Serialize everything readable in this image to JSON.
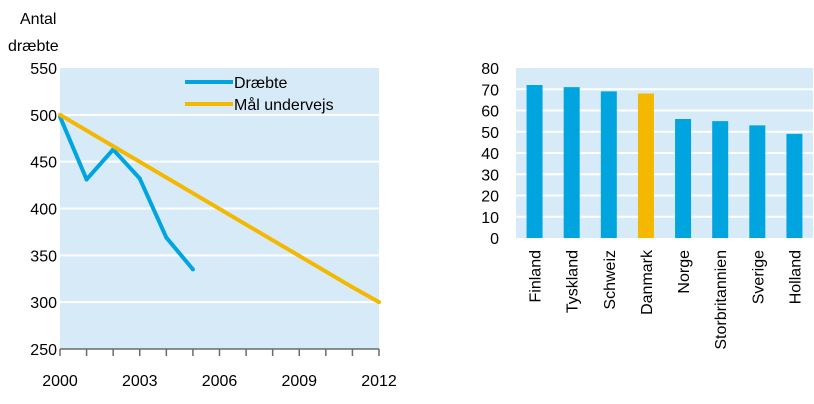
{
  "chart_data": [
    {
      "type": "line",
      "ylabel": "Antal dræbte",
      "ylabel_lines": [
        "Antal",
        "dræbte"
      ],
      "xlim": [
        2000,
        2012
      ],
      "ylim": [
        250,
        550
      ],
      "yticks": [
        250,
        300,
        350,
        400,
        450,
        500,
        550
      ],
      "xticks_labeled": [
        2000,
        2003,
        2006,
        2009,
        2012
      ],
      "xticks_minor": [
        2000,
        2001,
        2002,
        2003,
        2004,
        2005,
        2006,
        2007,
        2008,
        2009,
        2010,
        2011,
        2012
      ],
      "grid": true,
      "background": "#d6eaf8",
      "legend_position": "top-right",
      "series": [
        {
          "name": "Dræbte",
          "color": "#00a5e0",
          "x": [
            2000,
            2001,
            2002,
            2003,
            2004,
            2005
          ],
          "y": [
            498,
            431,
            463,
            432,
            369,
            335
          ]
        },
        {
          "name": "Mål undervejs",
          "color": "#f5b800",
          "x": [
            2000,
            2011,
            2012
          ],
          "y": [
            500,
            316,
            300
          ]
        }
      ]
    },
    {
      "type": "bar",
      "categories": [
        "Finland",
        "Tyskland",
        "Schweiz",
        "Danmark",
        "Norge",
        "Storbritannien",
        "Sverige",
        "Holland"
      ],
      "values": [
        72,
        71,
        69,
        68,
        56,
        55,
        53,
        49
      ],
      "colors": [
        "#00a5e0",
        "#00a5e0",
        "#00a5e0",
        "#f5b800",
        "#00a5e0",
        "#00a5e0",
        "#00a5e0",
        "#00a5e0"
      ],
      "ylim": [
        0,
        80
      ],
      "yticks": [
        0,
        10,
        20,
        30,
        40,
        50,
        60,
        70,
        80
      ],
      "grid": true,
      "background": "#d6eaf8"
    }
  ]
}
